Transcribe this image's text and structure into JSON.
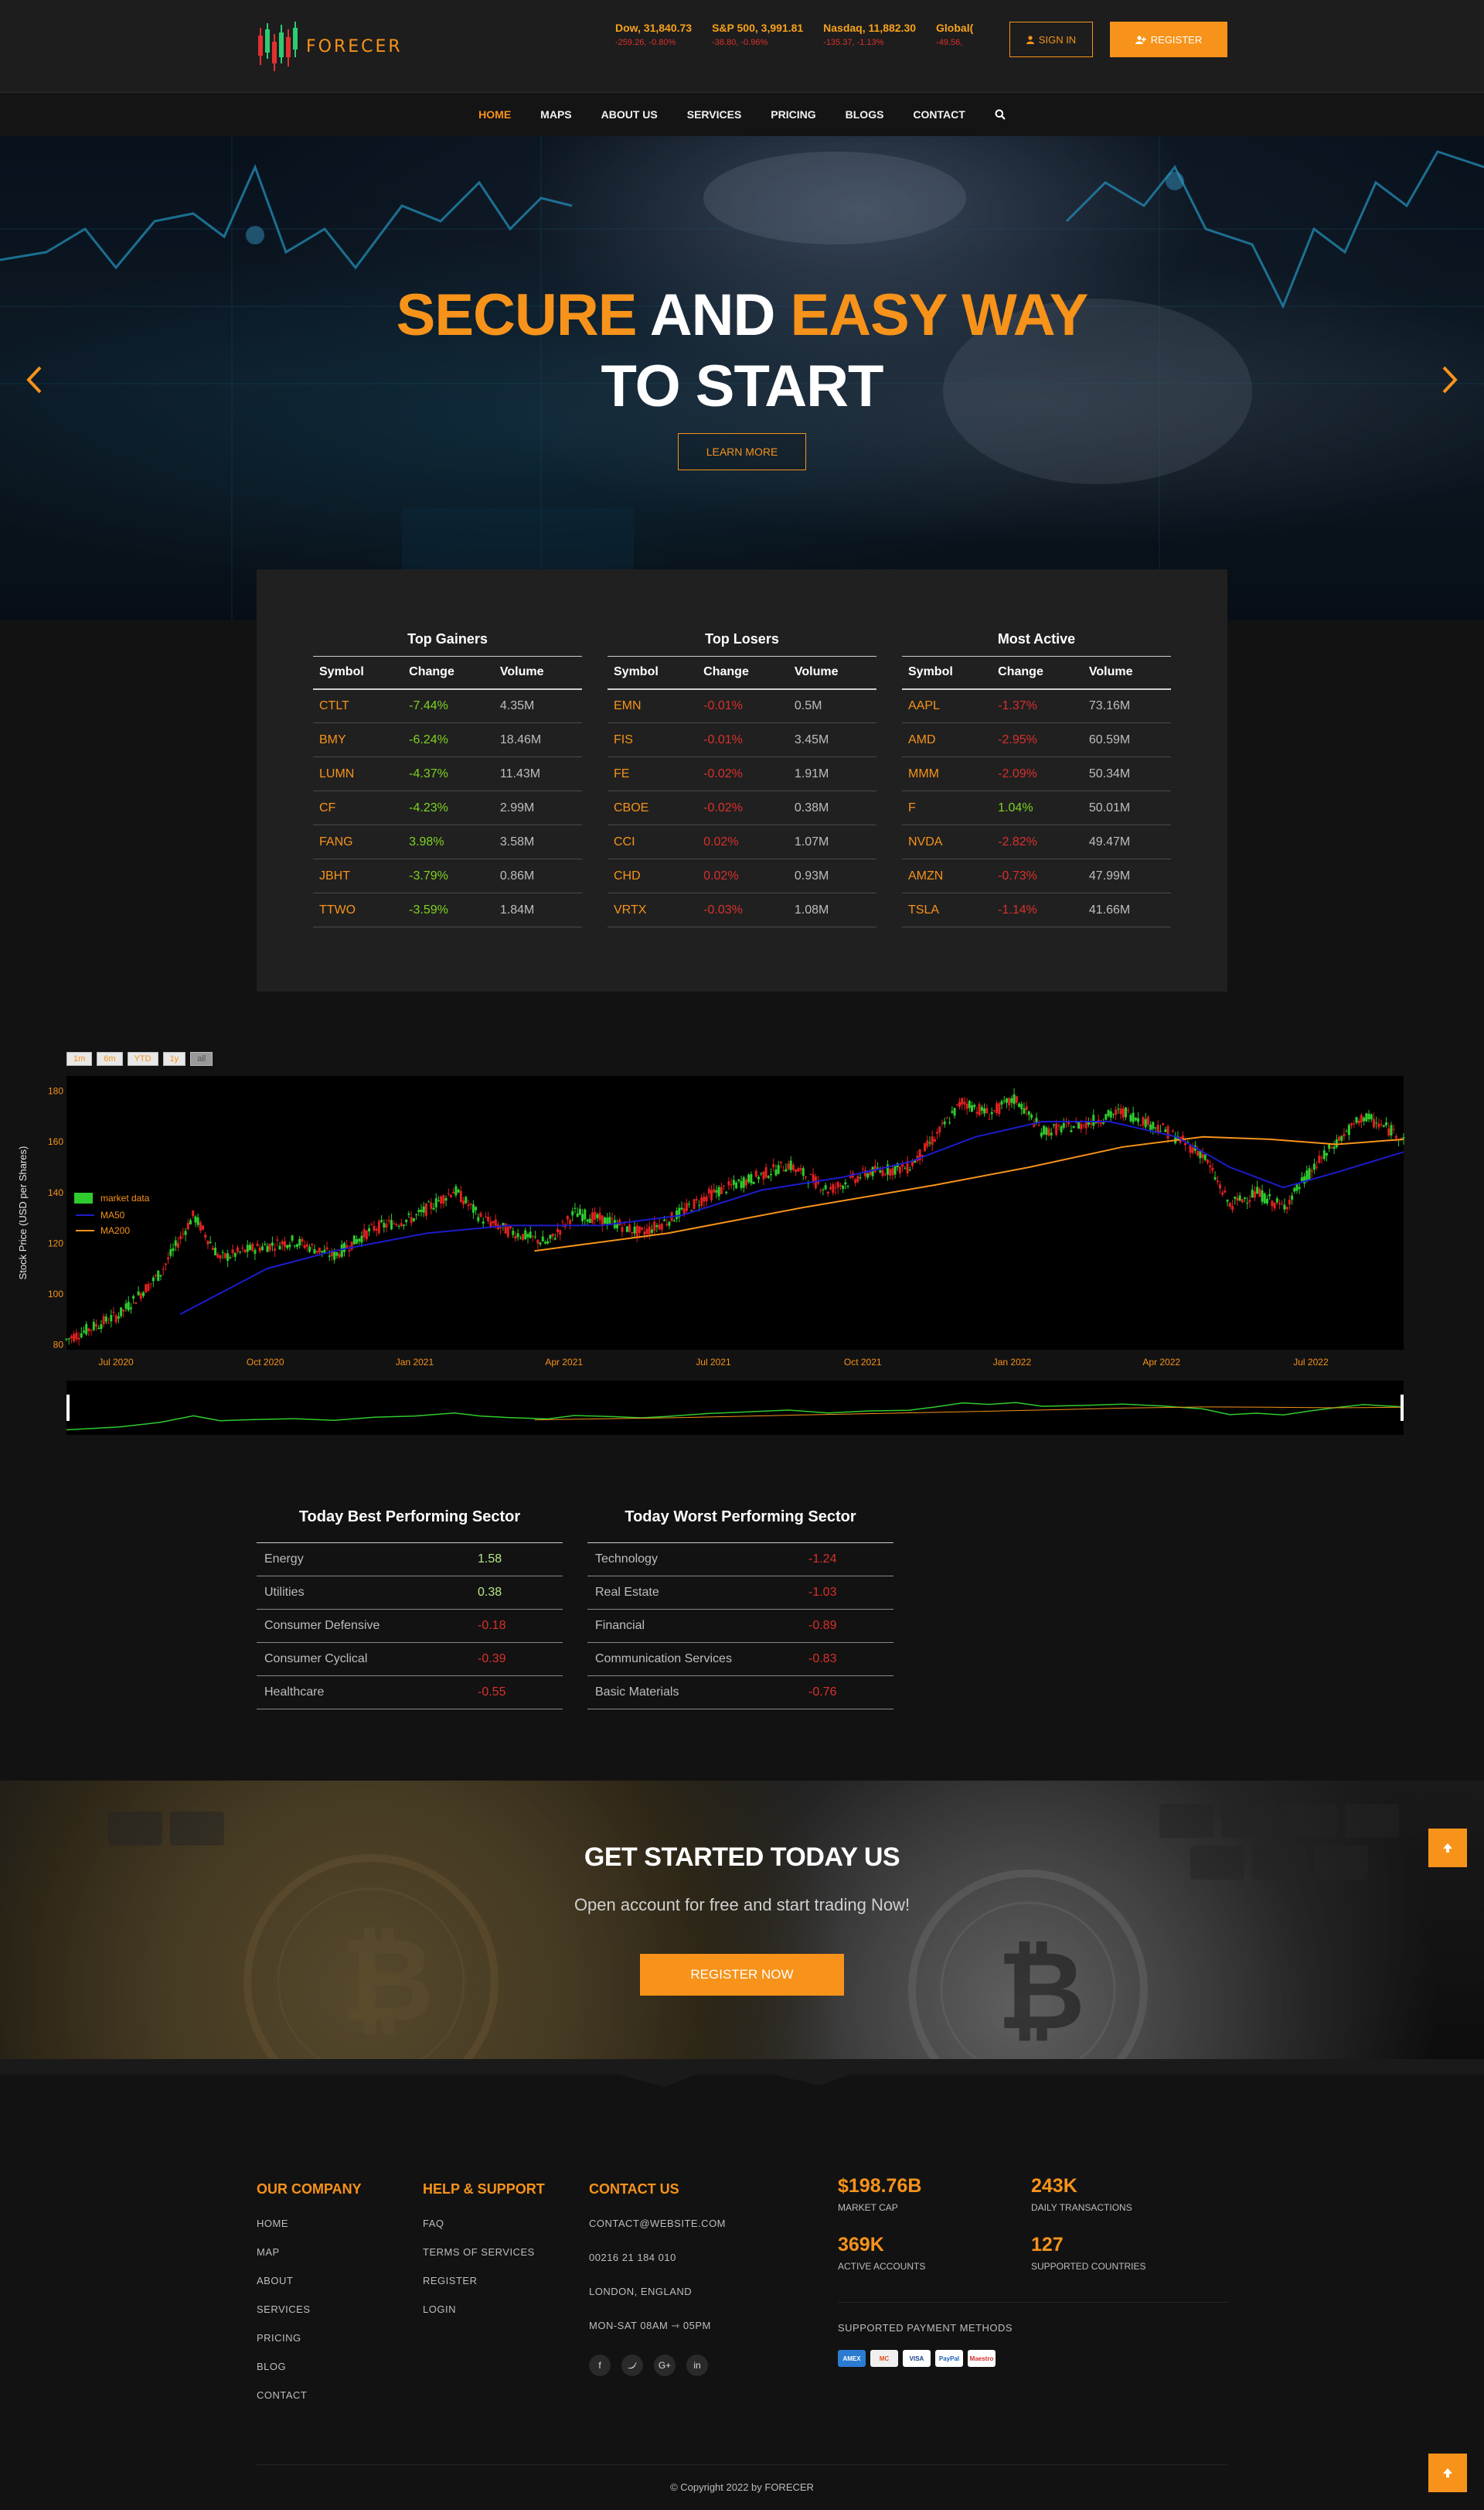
{
  "brand": {
    "name": "FORECER"
  },
  "tickers": [
    {
      "name": "Dow, 31,840.73",
      "change": "-259.26, -0.80%"
    },
    {
      "name": "S&P 500, 3,991.81",
      "change": "-38.80, -0.96%"
    },
    {
      "name": "Nasdaq, 11,882.30",
      "change": "-135.37, -1.13%"
    },
    {
      "name": "Global(",
      "change": "-49.56,"
    }
  ],
  "header": {
    "signin_label": "SIGN IN",
    "register_label": "REGISTER"
  },
  "nav": [
    "HOME",
    "MAPS",
    "ABOUT US",
    "SERVICES",
    "PRICING",
    "BLOGS",
    "CONTACT"
  ],
  "hero": {
    "w1": "SECURE",
    "w2": "AND",
    "w3": "EASY WAY",
    "line2": "TO START",
    "button": "LEARN MORE"
  },
  "market": {
    "headers": [
      "Symbol",
      "Change",
      "Volume"
    ],
    "gainers": {
      "title": "Top Gainers",
      "rows": [
        [
          "CTLT",
          "-7.44%",
          "4.35M"
        ],
        [
          "BMY",
          "-6.24%",
          "18.46M"
        ],
        [
          "LUMN",
          "-4.37%",
          "11.43M"
        ],
        [
          "CF",
          "-4.23%",
          "2.99M"
        ],
        [
          "FANG",
          "3.98%",
          "3.58M"
        ],
        [
          "JBHT",
          "-3.79%",
          "0.86M"
        ],
        [
          "TTWO",
          "-3.59%",
          "1.84M"
        ]
      ]
    },
    "losers": {
      "title": "Top Losers",
      "rows": [
        [
          "EMN",
          "-0.01%",
          "0.5M"
        ],
        [
          "FIS",
          "-0.01%",
          "3.45M"
        ],
        [
          "FE",
          "-0.02%",
          "1.91M"
        ],
        [
          "CBOE",
          "-0.02%",
          "0.38M"
        ],
        [
          "CCI",
          "0.02%",
          "1.07M"
        ],
        [
          "CHD",
          "0.02%",
          "0.93M"
        ],
        [
          "VRTX",
          "-0.03%",
          "1.08M"
        ]
      ]
    },
    "active": {
      "title": "Most Active",
      "rows": [
        [
          "AAPL",
          "-1.37%",
          "73.16M"
        ],
        [
          "AMD",
          "-2.95%",
          "60.59M"
        ],
        [
          "MMM",
          "-2.09%",
          "50.34M"
        ],
        [
          "F",
          "1.04%",
          "50.01M"
        ],
        [
          "NVDA",
          "-2.82%",
          "49.47M"
        ],
        [
          "AMZN",
          "-0.73%",
          "47.99M"
        ],
        [
          "TSLA",
          "-1.14%",
          "41.66M"
        ]
      ]
    }
  },
  "chart_buttons": [
    "1m",
    "6m",
    "YTD",
    "1y",
    "all"
  ],
  "chart_data": {
    "type": "candlestick",
    "ylabel": "Stock Price (USD per Shares)",
    "ylim": [
      78,
      186
    ],
    "yticks": [
      80,
      100,
      120,
      140,
      160,
      180
    ],
    "xticks": [
      "Jul 2020",
      "Oct 2020",
      "Jan 2021",
      "Apr 2021",
      "Jul 2021",
      "Oct 2021",
      "Jan 2022",
      "Apr 2022",
      "Jul 2022"
    ],
    "legend": [
      "market data",
      "MA50",
      "MA200"
    ],
    "colors": {
      "up": "#2ecc2e",
      "down": "#e02020",
      "ma50": "#1c1ccc",
      "ma200": "#f7931a"
    },
    "close_path": [
      [
        0,
        82
      ],
      [
        0.04,
        92
      ],
      [
        0.07,
        108
      ],
      [
        0.095,
        131
      ],
      [
        0.115,
        114
      ],
      [
        0.14,
        118
      ],
      [
        0.17,
        121
      ],
      [
        0.2,
        115
      ],
      [
        0.23,
        126
      ],
      [
        0.26,
        130
      ],
      [
        0.29,
        141
      ],
      [
        0.31,
        130
      ],
      [
        0.33,
        125
      ],
      [
        0.36,
        120
      ],
      [
        0.38,
        132
      ],
      [
        0.41,
        128
      ],
      [
        0.43,
        124
      ],
      [
        0.45,
        129
      ],
      [
        0.48,
        139
      ],
      [
        0.51,
        145
      ],
      [
        0.54,
        151
      ],
      [
        0.57,
        141
      ],
      [
        0.6,
        148
      ],
      [
        0.63,
        150
      ],
      [
        0.65,
        162
      ],
      [
        0.67,
        176
      ],
      [
        0.69,
        171
      ],
      [
        0.71,
        177
      ],
      [
        0.73,
        164
      ],
      [
        0.76,
        167
      ],
      [
        0.79,
        172
      ],
      [
        0.82,
        165
      ],
      [
        0.85,
        155
      ],
      [
        0.87,
        135
      ],
      [
        0.89,
        140
      ],
      [
        0.91,
        134
      ],
      [
        0.93,
        148
      ],
      [
        0.95,
        160
      ],
      [
        0.97,
        170
      ],
      [
        1.0,
        162
      ]
    ],
    "ma50_path": [
      [
        0.085,
        92
      ],
      [
        0.15,
        110
      ],
      [
        0.2,
        117
      ],
      [
        0.27,
        124
      ],
      [
        0.33,
        127
      ],
      [
        0.4,
        127
      ],
      [
        0.46,
        131
      ],
      [
        0.52,
        141
      ],
      [
        0.58,
        146
      ],
      [
        0.63,
        152
      ],
      [
        0.68,
        162
      ],
      [
        0.73,
        168
      ],
      [
        0.78,
        168
      ],
      [
        0.83,
        162
      ],
      [
        0.87,
        150
      ],
      [
        0.91,
        142
      ],
      [
        0.95,
        148
      ],
      [
        1.0,
        156
      ]
    ],
    "ma200_path": [
      [
        0.35,
        117
      ],
      [
        0.45,
        124
      ],
      [
        0.55,
        134
      ],
      [
        0.65,
        143
      ],
      [
        0.72,
        150
      ],
      [
        0.79,
        158
      ],
      [
        0.85,
        162
      ],
      [
        0.9,
        161
      ],
      [
        0.95,
        159
      ],
      [
        1.0,
        161
      ]
    ]
  },
  "sectors": {
    "best": {
      "title": "Today Best Performing Sector",
      "rows": [
        [
          "Energy",
          "1.58"
        ],
        [
          "Utilities",
          "0.38"
        ],
        [
          "Consumer Defensive",
          "-0.18"
        ],
        [
          "Consumer Cyclical",
          "-0.39"
        ],
        [
          "Healthcare",
          "-0.55"
        ]
      ]
    },
    "worst": {
      "title": "Today Worst Performing Sector",
      "rows": [
        [
          "Technology",
          "-1.24"
        ],
        [
          "Real Estate",
          "-1.03"
        ],
        [
          "Financial",
          "-0.89"
        ],
        [
          "Communication Services",
          "-0.83"
        ],
        [
          "Basic Materials",
          "-0.76"
        ]
      ]
    }
  },
  "cta": {
    "title": "GET STARTED TODAY US",
    "subtitle": "Open account for free and start trading Now!",
    "button": "REGISTER NOW"
  },
  "footer": {
    "company": {
      "title": "OUR COMPANY",
      "links": [
        "HOME",
        "MAP",
        "ABOUT",
        "SERVICES",
        "PRICING",
        "BLOG",
        "CONTACT"
      ]
    },
    "help": {
      "title": "HELP & SUPPORT",
      "links": [
        "FAQ",
        "TERMS OF SERVICES",
        "REGISTER",
        "LOGIN"
      ]
    },
    "contact": {
      "title": "CONTACT US",
      "lines": [
        "CONTACT@WEBSITE.COM",
        "00216 21 184 010",
        "LONDON, ENGLAND",
        "MON-SAT 08AM ⇾ 05PM"
      ]
    },
    "stats": [
      {
        "value": "$198.76B",
        "label": "MARKET CAP"
      },
      {
        "value": "243K",
        "label": "DAILY TRANSACTIONS"
      },
      {
        "value": "369K",
        "label": "ACTIVE ACCOUNTS"
      },
      {
        "value": "127",
        "label": "SUPPORTED COUNTRIES"
      }
    ],
    "payments_title": "SUPPORTED PAYMENT METHODS",
    "payments": [
      "AMEX",
      "MC",
      "VISA",
      "PayPal",
      "Maestro"
    ],
    "copyright": "© Copyright 2022 by FORECER"
  }
}
